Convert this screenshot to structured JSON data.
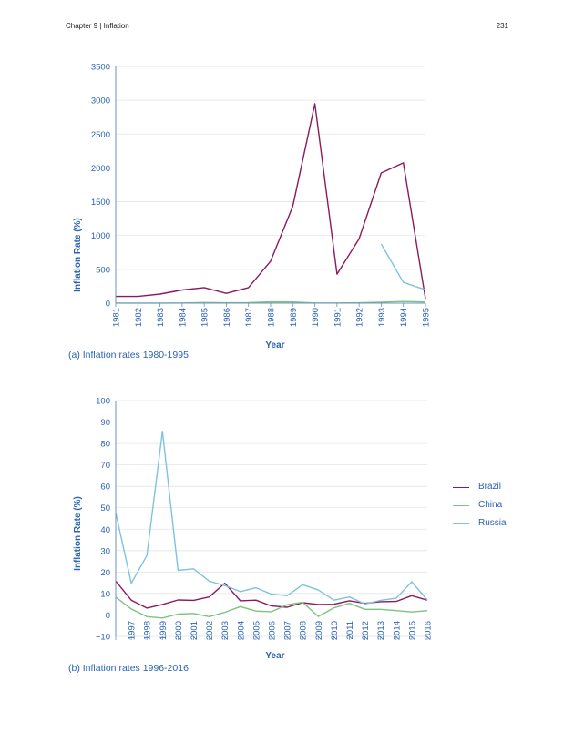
{
  "header": {
    "chapter": "Chapter 9 | Inflation",
    "page_number": "231"
  },
  "colors": {
    "axis_text": "#2b63b0",
    "grid": "#e3e3e3",
    "axis_line": "#6d8fc4"
  },
  "legend": [
    {
      "name": "Brazil",
      "color": "#8b1a5c"
    },
    {
      "name": "China",
      "color": "#7ac47f"
    },
    {
      "name": "Russia",
      "color": "#7ec2e2"
    }
  ],
  "chart_data": [
    {
      "type": "line",
      "caption": "(a) Inflation rates 1980-1995",
      "xlabel": "Year",
      "ylabel": "Inflation Rate (%)",
      "ylim": [
        0,
        3500
      ],
      "yticks": [
        0,
        500,
        1000,
        1500,
        2000,
        2500,
        3000,
        3500
      ],
      "x": [
        "1981",
        "1982",
        "1983",
        "1984",
        "1985",
        "1986",
        "1987",
        "1988",
        "1989",
        "1990",
        "1991",
        "1992",
        "1993",
        "1994",
        "1995"
      ],
      "grid": true,
      "legend": "none",
      "series": [
        {
          "name": "Brazil",
          "color": "#8b1a5c",
          "values": [
            100,
            100,
            135,
            195,
            230,
            145,
            230,
            620,
            1430,
            2950,
            430,
            950,
            1925,
            2075,
            65
          ]
        },
        {
          "name": "China",
          "color": "#7ac47f",
          "values": [
            2,
            2,
            2,
            3,
            9,
            6,
            7,
            19,
            18,
            3,
            3,
            6,
            15,
            24,
            17
          ]
        },
        {
          "name": "Russia",
          "color": "#7ec2e2",
          "values": [
            null,
            null,
            null,
            null,
            null,
            null,
            null,
            null,
            null,
            null,
            null,
            null,
            875,
            307,
            198
          ]
        }
      ]
    },
    {
      "type": "line",
      "caption": "(b) Inflation rates 1996-2016",
      "xlabel": "Year",
      "ylabel": "Inflation Rate (%)",
      "ylim": [
        -10,
        100
      ],
      "yticks": [
        -10,
        0,
        10,
        20,
        30,
        40,
        50,
        60,
        70,
        80,
        90,
        100
      ],
      "x": [
        "1996",
        "1997",
        "1998",
        "1999",
        "2000",
        "2001",
        "2002",
        "2003",
        "2004",
        "2005",
        "2006",
        "2007",
        "2008",
        "2009",
        "2010",
        "2011",
        "2012",
        "2013",
        "2014",
        "2015",
        "2016"
      ],
      "xtick_labels": [
        "",
        "1997",
        "1998",
        "1999",
        "2000",
        "2001",
        "2002",
        "2003",
        "2004",
        "2005",
        "2006",
        "2007",
        "2008",
        "2009",
        "2010",
        "2011",
        "2012",
        "2013",
        "2014",
        "2015",
        "2016"
      ],
      "grid": true,
      "legend": "right",
      "series": [
        {
          "name": "Brazil",
          "color": "#8b1a5c",
          "values": [
            15.8,
            6.9,
            3.2,
            4.9,
            7.0,
            6.8,
            8.4,
            14.8,
            6.6,
            6.9,
            4.2,
            3.6,
            5.7,
            4.9,
            5.0,
            6.6,
            5.4,
            6.2,
            6.3,
            9.0,
            6.9
          ]
        },
        {
          "name": "China",
          "color": "#7ac47f",
          "values": [
            8.3,
            2.8,
            -0.8,
            -1.4,
            0.4,
            0.7,
            -0.8,
            1.2,
            3.9,
            1.8,
            1.5,
            4.8,
            5.9,
            -0.7,
            3.3,
            5.4,
            2.6,
            2.6,
            2.0,
            1.4,
            2.0
          ]
        },
        {
          "name": "Russia",
          "color": "#7ec2e2",
          "values": [
            47.7,
            14.8,
            27.7,
            85.7,
            20.8,
            21.5,
            15.8,
            13.7,
            10.9,
            12.7,
            9.7,
            9.0,
            14.1,
            11.7,
            6.9,
            8.4,
            5.1,
            6.8,
            7.8,
            15.5,
            7.0
          ]
        }
      ]
    }
  ]
}
